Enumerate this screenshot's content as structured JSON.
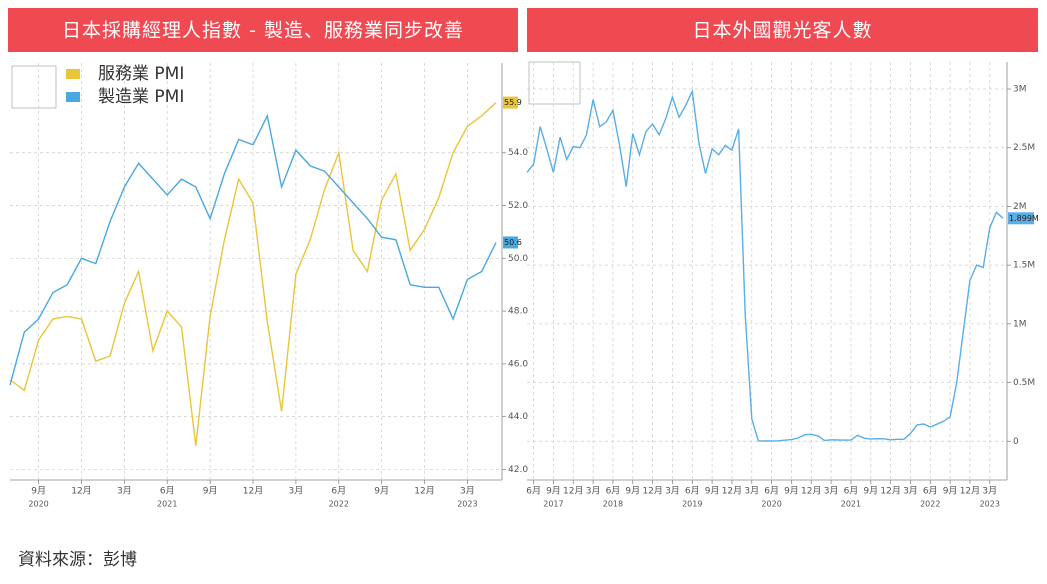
{
  "chart_data": [
    {
      "type": "line",
      "title": "日本採購經理人指數 - 製造、服務業同步改善",
      "categories": [
        null,
        null,
        "9月",
        null,
        null,
        "12月",
        null,
        null,
        "3月",
        null,
        null,
        "6月",
        null,
        null,
        "9月",
        null,
        null,
        "12月",
        null,
        null,
        "3月",
        null,
        null,
        "6月",
        null,
        null,
        "9月",
        null,
        null,
        "12月",
        null,
        null,
        "3月",
        null,
        null
      ],
      "category_years": [
        null,
        null,
        "2020",
        null,
        null,
        null,
        null,
        null,
        null,
        null,
        null,
        "2021",
        null,
        null,
        null,
        null,
        null,
        null,
        null,
        null,
        null,
        null,
        null,
        "2022",
        null,
        null,
        null,
        null,
        null,
        null,
        null,
        null,
        "2023",
        null,
        null
      ],
      "series": [
        {
          "name": "服務業 PMI",
          "color": "#e8c53a",
          "values": [
            45.4,
            45.0,
            46.9,
            47.7,
            47.8,
            47.7,
            46.1,
            46.3,
            48.3,
            49.5,
            46.5,
            48.0,
            47.4,
            42.9,
            47.8,
            50.7,
            53.0,
            52.1,
            47.6,
            44.2,
            49.4,
            50.7,
            52.6,
            54.0,
            50.3,
            49.5,
            52.2,
            53.2,
            50.3,
            51.1,
            52.3,
            54.0,
            55.0,
            55.4,
            55.9
          ]
        },
        {
          "name": "製造業 PMI",
          "color": "#4aa8e0",
          "values": [
            45.2,
            47.2,
            47.7,
            48.7,
            49.0,
            50.0,
            49.8,
            51.4,
            52.7,
            53.6,
            53.0,
            52.4,
            53.0,
            52.7,
            51.5,
            53.2,
            54.5,
            54.3,
            55.4,
            52.7,
            54.1,
            53.5,
            53.3,
            52.7,
            52.1,
            51.5,
            50.8,
            50.7,
            49.0,
            48.9,
            48.9,
            47.7,
            49.2,
            49.5,
            50.6
          ]
        }
      ],
      "ylim": [
        41.6,
        57.4
      ],
      "yticks": [
        {
          "value": 42,
          "label": "42.0"
        },
        {
          "value": 44,
          "label": "44.0"
        },
        {
          "value": 46,
          "label": "46.0"
        },
        {
          "value": 48,
          "label": "48.0"
        },
        {
          "value": 50,
          "label": "50.0"
        },
        {
          "value": 52,
          "label": "52.0"
        },
        {
          "value": 54,
          "label": "54.0"
        }
      ],
      "grid": true
    },
    {
      "type": "line",
      "title": "日本外國觀光客人數",
      "categories": [
        null,
        "6月",
        null,
        null,
        "9月",
        null,
        null,
        "12月",
        null,
        null,
        "3月",
        null,
        null,
        "6月",
        null,
        null,
        "9月",
        null,
        null,
        "12月",
        null,
        null,
        "3月",
        null,
        null,
        "6月",
        null,
        null,
        "9月",
        null,
        null,
        "12月",
        null,
        null,
        "3月",
        null,
        null,
        "6月",
        null,
        null,
        "9月",
        null,
        null,
        "12月",
        null,
        null,
        "3月",
        null,
        null,
        "6月",
        null,
        null,
        "9月",
        null,
        null,
        "12月",
        null,
        null,
        "3月",
        null,
        null,
        "6月",
        null,
        null,
        "9月",
        null,
        null,
        "12月",
        null,
        null,
        "3月",
        null,
        null
      ],
      "category_years": [
        null,
        null,
        null,
        null,
        "2017",
        null,
        null,
        null,
        null,
        null,
        null,
        null,
        null,
        "2018",
        null,
        null,
        null,
        null,
        null,
        null,
        null,
        null,
        null,
        null,
        null,
        "2019",
        null,
        null,
        null,
        null,
        null,
        null,
        null,
        null,
        null,
        null,
        null,
        "2020",
        null,
        null,
        null,
        null,
        null,
        null,
        null,
        null,
        null,
        null,
        null,
        "2021",
        null,
        null,
        null,
        null,
        null,
        null,
        null,
        null,
        null,
        null,
        null,
        "2022",
        null,
        null,
        null,
        null,
        null,
        null,
        null,
        null,
        "2023",
        null,
        null
      ],
      "series": [
        {
          "color": "#5aaee6",
          "last_value_label": "1.899M",
          "values": [
            2290000,
            2360000,
            2680000,
            2490000,
            2290000,
            2590000,
            2400000,
            2510000,
            2500000,
            2610000,
            2910000,
            2680000,
            2720000,
            2820000,
            2520000,
            2170000,
            2620000,
            2440000,
            2640000,
            2700000,
            2610000,
            2750000,
            2930000,
            2760000,
            2860000,
            2980000,
            2540000,
            2280000,
            2490000,
            2440000,
            2520000,
            2480000,
            2660000,
            1080000,
            190000,
            3000,
            2000,
            3000,
            4000,
            9000,
            14000,
            28000,
            56000,
            59000,
            46000,
            7000,
            12000,
            11000,
            10000,
            10000,
            51000,
            26000,
            18000,
            22000,
            21000,
            12000,
            17000,
            17000,
            66000,
            139000,
            147000,
            121000,
            145000,
            170000,
            207000,
            499000,
            935000,
            1370000,
            1500000,
            1480000,
            1820000,
            1950000,
            1898900
          ]
        }
      ],
      "ylim": [
        -330000,
        3230000
      ],
      "yticks": [
        0,
        {
          "value": 500000,
          "label": "0.5M"
        },
        {
          "value": 1000000,
          "label": "1M"
        },
        {
          "value": 1500000,
          "label": "1.5M"
        },
        {
          "value": 2000000,
          "label": "2M"
        },
        {
          "value": 2500000,
          "label": "2.5M"
        },
        {
          "value": 3000000,
          "label": "3M"
        }
      ],
      "grid": true
    }
  ],
  "source": "資料來源：彭博"
}
